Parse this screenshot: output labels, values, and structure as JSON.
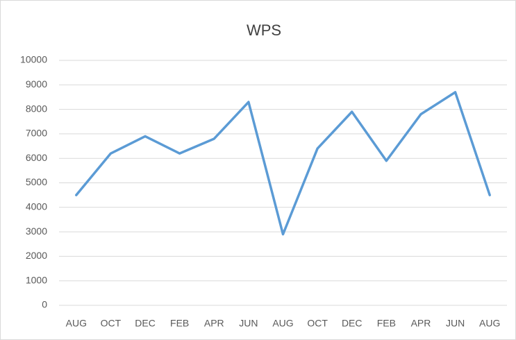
{
  "chart_data": {
    "type": "line",
    "title": "WPS",
    "categories": [
      "AUG",
      "OCT",
      "DEC",
      "FEB",
      "APR",
      "JUN",
      "AUG",
      "OCT",
      "DEC",
      "FEB",
      "APR",
      "JUN",
      "AUG"
    ],
    "values": [
      4500,
      6200,
      6900,
      6200,
      6800,
      8300,
      2900,
      6400,
      7900,
      5900,
      7800,
      8700,
      4500
    ],
    "color": "#5b9bd5",
    "ylim": [
      0,
      10000
    ],
    "yticks": [
      0,
      1000,
      2000,
      3000,
      4000,
      5000,
      6000,
      7000,
      8000,
      9000,
      10000
    ],
    "grid": true
  }
}
